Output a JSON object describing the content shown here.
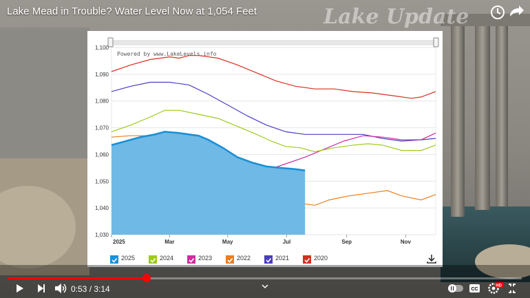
{
  "video": {
    "title": "Lake Mead in Trouble? Water Level Now at 1,054 Feet",
    "watermark": "Lake Update",
    "time_current": "0:53",
    "time_separator": " / ",
    "time_total": "3:14",
    "progress_fraction": 0.27,
    "hd_badge": "HD",
    "cc_label": "CC"
  },
  "icons": {
    "play": "play-icon",
    "next": "next-icon",
    "volume": "volume-icon",
    "autoplay": "autoplay-toggle-icon",
    "captions": "captions-icon",
    "settings": "gear-icon",
    "fullscreen": "fullscreen-exit-icon",
    "watch_later": "clock-icon",
    "share": "share-icon",
    "download": "download-icon",
    "chevron": "chevron-down-icon"
  },
  "chart_data": {
    "type": "line",
    "credit": "Powered by www.LakeLevels.info",
    "ylim": [
      1030,
      1100
    ],
    "yticks": [
      1030,
      1040,
      1050,
      1060,
      1070,
      1080,
      1090,
      1100
    ],
    "ytick_labels": [
      "1,030",
      "1,040",
      "1,050",
      "1,060",
      "1,070",
      "1,080",
      "1,090",
      "1,100"
    ],
    "x_labels": [
      "2025",
      "Mar",
      "May",
      "Jul",
      "Sep",
      "Nov"
    ],
    "x_label_days": [
      0,
      60,
      120,
      181,
      243,
      304
    ],
    "xlim_days": [
      0,
      335
    ],
    "series": [
      {
        "name": "2025",
        "color": "#1b8fd6",
        "area": true,
        "x": [
          0,
          10,
          30,
          45,
          55,
          70,
          80,
          90,
          100,
          115,
          130,
          145,
          160,
          175,
          190,
          200
        ],
        "y": [
          1063.5,
          1064.5,
          1066.5,
          1067.5,
          1068.5,
          1068,
          1067.5,
          1067,
          1065.5,
          1062.5,
          1059,
          1057,
          1055.5,
          1055,
          1054.5,
          1054
        ]
      },
      {
        "name": "2024",
        "color": "#9ccb19",
        "x": [
          0,
          20,
          40,
          55,
          70,
          90,
          110,
          130,
          150,
          165,
          180,
          195,
          210,
          230,
          250,
          265,
          280,
          300,
          320,
          335
        ],
        "y": [
          1068.5,
          1071,
          1074,
          1076.5,
          1076.5,
          1075,
          1073.5,
          1070.5,
          1067.5,
          1065,
          1063,
          1062.5,
          1061,
          1062.5,
          1063.5,
          1064,
          1063.5,
          1061.5,
          1061.5,
          1063.5
        ]
      },
      {
        "name": "2023",
        "color": "#cc2ea0",
        "x": [
          0,
          15,
          30,
          50,
          65,
          80,
          95,
          110,
          112,
          125,
          140,
          160,
          180,
          200,
          220,
          240,
          260,
          280,
          300,
          320,
          335
        ],
        "y": [
          1045,
          1045.5,
          1046.5,
          1047.5,
          1047,
          1046.5,
          1046.5,
          1047,
          1049.5,
          1050.5,
          1052,
          1054,
          1056.5,
          1059,
          1062,
          1065,
          1067,
          1066.5,
          1065.5,
          1065.5,
          1068
        ]
      },
      {
        "name": "2022",
        "color": "#ee7d1b",
        "x": [
          0,
          20,
          40,
          60,
          80,
          100,
          120,
          140,
          160,
          180,
          200,
          210,
          225,
          245,
          265,
          285,
          300,
          320,
          335
        ],
        "y": [
          1066.5,
          1067,
          1067,
          1066,
          1063,
          1059,
          1054.5,
          1050,
          1046.5,
          1043.5,
          1041.5,
          1041,
          1043,
          1044.5,
          1045.5,
          1046.5,
          1044.5,
          1043,
          1045
        ]
      },
      {
        "name": "2021",
        "color": "#4a3dc0",
        "x": [
          0,
          20,
          40,
          60,
          80,
          100,
          120,
          140,
          160,
          180,
          200,
          220,
          240,
          260,
          280,
          300,
          320,
          335
        ],
        "y": [
          1083.5,
          1085.5,
          1087,
          1087,
          1086,
          1082.5,
          1078.5,
          1074.5,
          1071,
          1068.5,
          1067.5,
          1067.5,
          1067.5,
          1067.5,
          1066,
          1065,
          1065.5,
          1066
        ]
      },
      {
        "name": "2020",
        "color": "#d62f1f",
        "x": [
          0,
          20,
          40,
          60,
          70,
          80,
          90,
          110,
          130,
          150,
          170,
          190,
          210,
          230,
          250,
          270,
          290,
          310,
          320,
          335
        ],
        "y": [
          1091,
          1093.5,
          1095.5,
          1096.5,
          1096,
          1097,
          1097,
          1096,
          1093.5,
          1090.5,
          1087.5,
          1085.5,
          1084.5,
          1084.5,
          1083.5,
          1083,
          1082,
          1081,
          1081.5,
          1083.5
        ]
      }
    ],
    "grid": "horizontal",
    "legend_position": "bottom"
  }
}
